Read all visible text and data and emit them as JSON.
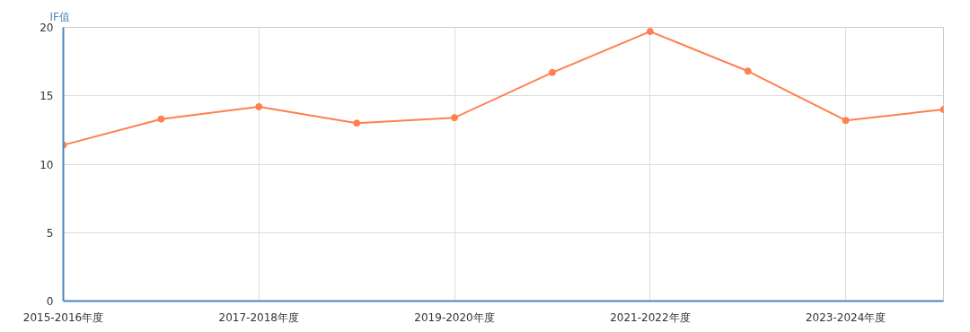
{
  "chart_data": {
    "type": "line",
    "ylabel": "IF值",
    "categories": [
      "2015-2016年度",
      null,
      "2017-2018年度",
      null,
      "2019-2020年度",
      null,
      "2021-2022年度",
      null,
      "2023-2024年度",
      null
    ],
    "series": [
      {
        "color": "#ff7f50",
        "values": [
          11.4,
          13.3,
          14.2,
          13.0,
          13.4,
          16.7,
          19.7,
          16.8,
          13.2,
          14.0
        ]
      }
    ],
    "ylim": [
      0,
      20
    ],
    "yticks": [
      0,
      5,
      10,
      15,
      20
    ],
    "grid": true,
    "marker": "circle",
    "line_style": "solid"
  }
}
